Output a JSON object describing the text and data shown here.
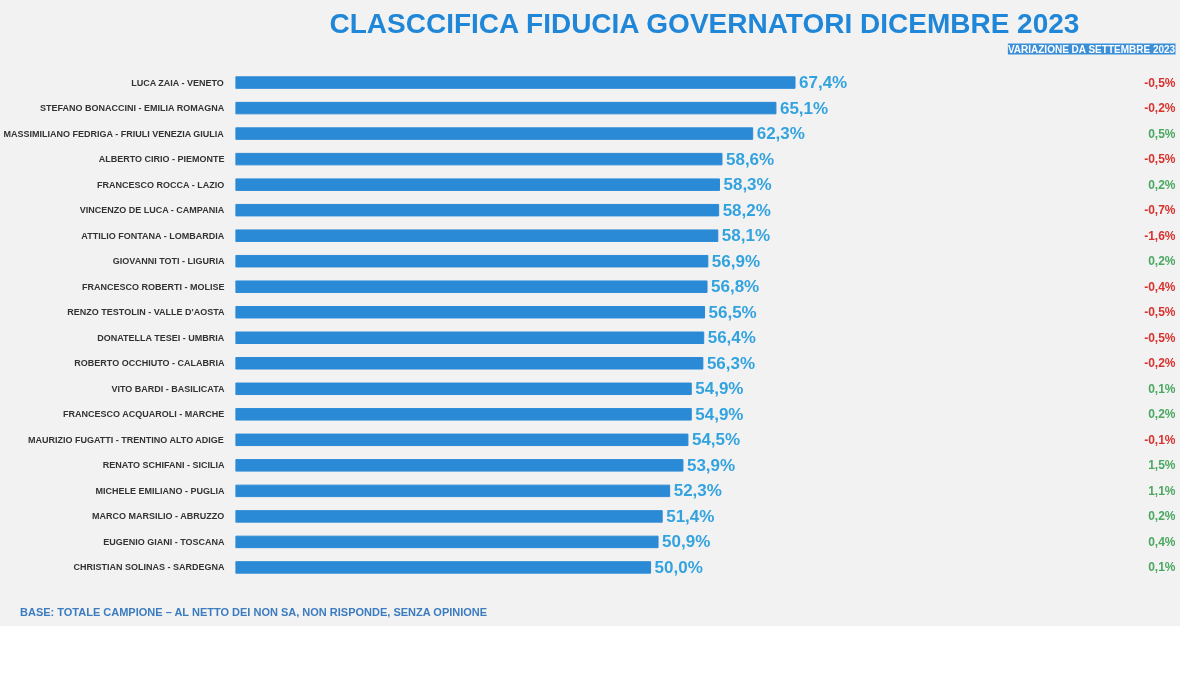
{
  "chart_data": {
    "type": "bar",
    "orientation": "horizontal",
    "title": "CLASCCIFICA FIDUCIA GOVERNATORI DICEMBRE 2023",
    "categories": [
      "LUCA ZAIA - VENETO",
      "STEFANO BONACCINI - EMILIA ROMAGNA",
      "MASSIMILIANO FEDRIGA - FRIULI VENEZIA GIULIA",
      "ALBERTO CIRIO - PIEMONTE",
      "FRANCESCO ROCCA - LAZIO",
      "VINCENZO DE LUCA - CAMPANIA",
      "ATTILIO FONTANA - LOMBARDIA",
      "GIOVANNI TOTI - LIGURIA",
      "FRANCESCO ROBERTI - MOLISE",
      "RENZO TESTOLIN - VALLE D'AOSTA",
      "DONATELLA TESEI - UMBRIA",
      "ROBERTO OCCHIUTO - CALABRIA",
      "VITO BARDI - BASILICATA",
      "FRANCESCO ACQUAROLI - MARCHE",
      "MAURIZIO FUGATTI - TRENTINO ALTO ADIGE",
      "RENATO SCHIFANI - SICILIA",
      "MICHELE EMILIANO - PUGLIA",
      "MARCO MARSILIO - ABRUZZO",
      "EUGENIO GIANI - TOSCANA",
      "CHRISTIAN SOLINAS - SARDEGNA"
    ],
    "values": [
      67.4,
      65.1,
      62.3,
      58.6,
      58.3,
      58.2,
      58.1,
      56.9,
      56.8,
      56.5,
      56.4,
      56.3,
      54.9,
      54.9,
      54.5,
      53.9,
      52.3,
      51.4,
      50.9,
      50.0
    ],
    "value_labels": [
      "67,4%",
      "65,1%",
      "62,3%",
      "58,6%",
      "58,3%",
      "58,2%",
      "58,1%",
      "56,9%",
      "56,8%",
      "56,5%",
      "56,4%",
      "56,3%",
      "54,9%",
      "54,9%",
      "54,5%",
      "53,9%",
      "52,3%",
      "51,4%",
      "50,9%",
      "50,0%"
    ],
    "color": "#2b8ad6",
    "grid": false,
    "tick_labels": "y",
    "annotations": [
      "VARIAZIONE DA SETTEMBRE 2023",
      "BASE: TOTALE CAMPIONE – AL NETTO DEI NON SA, NON RISPONDE, SENZA OPINIONE",
      "-0,5%",
      "-0,2%",
      "0,5%",
      "-0,5%",
      "0,2%",
      "-0,7%",
      "-1,6%",
      "0,2%",
      "-0,4%",
      "-0,5%",
      "-0,5%",
      "-0,2%",
      "0,1%",
      "0,2%",
      "-0,1%",
      "1,5%",
      "1,1%",
      "0,2%",
      "0,4%",
      "0,1%"
    ]
  }
}
